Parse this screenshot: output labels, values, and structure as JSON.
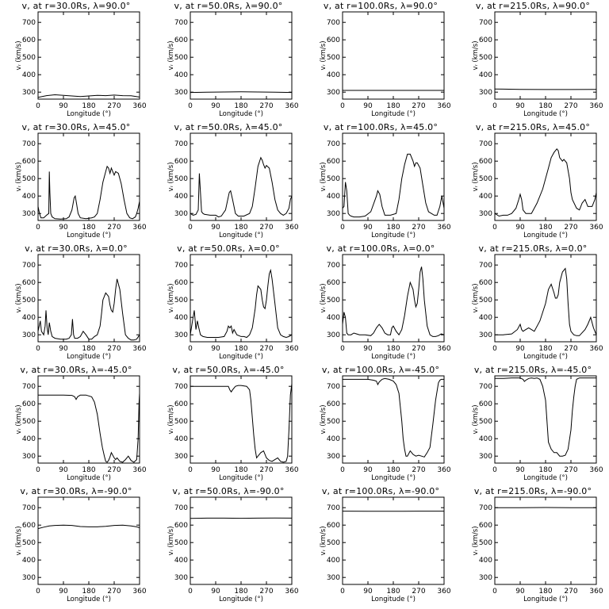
{
  "chart_data": {
    "type": "line",
    "title_template": "v{r} at r={radius}Rs, λ={lat}°",
    "xlabel": "Longitude (°)",
    "ylabel": "v{r} (km/s)",
    "xlim": [
      0,
      360
    ],
    "ylim": [
      260,
      760
    ],
    "xticks": [
      0,
      90,
      180,
      270,
      360
    ],
    "yticks": [
      300,
      400,
      500,
      600,
      700
    ],
    "radii": [
      "30.0",
      "50.0",
      "100.0",
      "215.0"
    ],
    "latitudes": [
      "90.0",
      "45.0",
      "0.0",
      "-45.0",
      "-90.0"
    ],
    "panels": [
      {
        "title": "v, at r=30.0Rs, λ=90.0°",
        "x": [
          0,
          30,
          60,
          90,
          120,
          150,
          180,
          210,
          240,
          270,
          300,
          330,
          360
        ],
        "y": [
          270,
          280,
          285,
          282,
          278,
          275,
          278,
          282,
          280,
          283,
          280,
          279,
          272
        ]
      },
      {
        "title": "v, at r=50.0Rs, λ=90.0°",
        "x": [
          0,
          60,
          120,
          180,
          240,
          300,
          360
        ],
        "y": [
          298,
          300,
          301,
          302,
          301,
          300,
          298
        ]
      },
      {
        "title": "v, at r=100.0Rs, λ=90.0°",
        "x": [
          0,
          360
        ],
        "y": [
          310,
          310
        ]
      },
      {
        "title": "v, at r=215.0Rs, λ=90.0°",
        "x": [
          0,
          90,
          180,
          270,
          360
        ],
        "y": [
          318,
          316,
          315,
          315,
          316
        ]
      },
      {
        "title": "v, at r=30.0Rs, λ=45.0°",
        "x": [
          0,
          5,
          10,
          20,
          30,
          38,
          40,
          42,
          45,
          50,
          60,
          80,
          100,
          110,
          120,
          128,
          132,
          136,
          142,
          150,
          170,
          190,
          200,
          210,
          220,
          230,
          240,
          245,
          250,
          255,
          260,
          265,
          270,
          275,
          285,
          295,
          305,
          315,
          325,
          335,
          345,
          350,
          355,
          360
        ],
        "y": [
          340,
          300,
          275,
          275,
          290,
          300,
          540,
          420,
          300,
          280,
          270,
          268,
          270,
          280,
          320,
          390,
          400,
          360,
          300,
          275,
          270,
          275,
          280,
          300,
          380,
          480,
          540,
          570,
          560,
          530,
          560,
          540,
          520,
          540,
          530,
          470,
          380,
          300,
          275,
          270,
          280,
          300,
          330,
          370
        ]
      },
      {
        "title": "v, at r=50.0Rs, λ=45.0°",
        "x": [
          0,
          10,
          20,
          28,
          32,
          36,
          40,
          45,
          50,
          70,
          90,
          100,
          110,
          125,
          138,
          143,
          150,
          160,
          170,
          190,
          210,
          220,
          230,
          240,
          250,
          255,
          260,
          265,
          270,
          280,
          290,
          300,
          310,
          320,
          330,
          340,
          350,
          355,
          360
        ],
        "y": [
          300,
          290,
          295,
          320,
          530,
          420,
          310,
          300,
          295,
          290,
          290,
          280,
          285,
          320,
          420,
          430,
          380,
          300,
          285,
          285,
          300,
          340,
          450,
          570,
          620,
          605,
          580,
          560,
          575,
          560,
          480,
          380,
          320,
          300,
          290,
          300,
          330,
          380,
          400
        ]
      },
      {
        "title": "v, at r=100.0Rs, λ=45.0°",
        "x": [
          0,
          5,
          10,
          15,
          20,
          25,
          30,
          40,
          60,
          80,
          100,
          120,
          125,
          132,
          140,
          150,
          170,
          190,
          200,
          210,
          220,
          230,
          240,
          250,
          255,
          260,
          265,
          275,
          285,
          295,
          305,
          315,
          325,
          335,
          345,
          352,
          360
        ],
        "y": [
          330,
          340,
          480,
          430,
          300,
          290,
          285,
          280,
          280,
          285,
          310,
          400,
          430,
          410,
          340,
          290,
          290,
          300,
          380,
          500,
          580,
          640,
          640,
          600,
          570,
          590,
          590,
          560,
          460,
          360,
          310,
          300,
          290,
          290,
          340,
          400,
          330
        ]
      },
      {
        "title": "v, at r=215.0Rs, λ=45.0°",
        "x": [
          0,
          15,
          30,
          45,
          60,
          75,
          85,
          90,
          95,
          100,
          110,
          130,
          150,
          170,
          190,
          200,
          210,
          220,
          225,
          230,
          240,
          245,
          255,
          265,
          270,
          275,
          290,
          300,
          310,
          320,
          330,
          345,
          355,
          360
        ],
        "y": [
          300,
          285,
          290,
          290,
          300,
          330,
          380,
          410,
          380,
          320,
          300,
          300,
          360,
          440,
          560,
          620,
          650,
          670,
          660,
          620,
          600,
          610,
          590,
          500,
          420,
          380,
          330,
          320,
          360,
          380,
          340,
          340,
          380,
          420
        ]
      },
      {
        "title": "v, at r=30.0Rs, λ=0.0°",
        "x": [
          0,
          8,
          12,
          20,
          25,
          28,
          32,
          36,
          40,
          45,
          50,
          60,
          80,
          100,
          110,
          118,
          122,
          126,
          130,
          140,
          150,
          160,
          170,
          180,
          190,
          200,
          210,
          220,
          225,
          230,
          240,
          250,
          255,
          260,
          265,
          270,
          275,
          280,
          290,
          300,
          310,
          320,
          330,
          340,
          350,
          360
        ],
        "y": [
          320,
          380,
          320,
          300,
          350,
          440,
          340,
          300,
          370,
          320,
          290,
          280,
          275,
          275,
          280,
          300,
          390,
          300,
          280,
          280,
          290,
          320,
          300,
          275,
          275,
          290,
          300,
          350,
          420,
          500,
          540,
          520,
          470,
          440,
          430,
          480,
          560,
          620,
          560,
          420,
          300,
          280,
          270,
          270,
          275,
          300
        ]
      },
      {
        "title": "v, at r=50.0Rs, λ=0.0°",
        "x": [
          0,
          8,
          14,
          20,
          25,
          30,
          36,
          45,
          60,
          80,
          100,
          120,
          130,
          135,
          140,
          145,
          150,
          155,
          165,
          180,
          190,
          200,
          210,
          220,
          230,
          235,
          240,
          250,
          255,
          260,
          265,
          270,
          275,
          280,
          285,
          290,
          300,
          310,
          320,
          330,
          340,
          350,
          360
        ],
        "y": [
          300,
          380,
          440,
          330,
          380,
          340,
          300,
          290,
          285,
          285,
          285,
          290,
          320,
          350,
          340,
          350,
          310,
          330,
          300,
          290,
          290,
          285,
          300,
          340,
          450,
          530,
          580,
          560,
          500,
          460,
          450,
          500,
          580,
          650,
          670,
          620,
          480,
          340,
          300,
          290,
          285,
          290,
          300
        ]
      },
      {
        "title": "v, at r=100.0Rs, λ=0.0°",
        "x": [
          0,
          5,
          10,
          15,
          20,
          30,
          40,
          50,
          60,
          80,
          100,
          110,
          120,
          130,
          140,
          150,
          160,
          170,
          175,
          180,
          190,
          200,
          210,
          220,
          230,
          240,
          250,
          255,
          260,
          265,
          270,
          275,
          280,
          285,
          290,
          300,
          310,
          320,
          330,
          340,
          350,
          360
        ],
        "y": [
          360,
          430,
          400,
          310,
          300,
          300,
          310,
          305,
          300,
          300,
          295,
          310,
          340,
          360,
          340,
          310,
          300,
          300,
          340,
          350,
          320,
          300,
          330,
          410,
          520,
          600,
          560,
          500,
          460,
          480,
          560,
          660,
          690,
          620,
          500,
          350,
          300,
          290,
          290,
          295,
          305,
          300
        ]
      },
      {
        "title": "v, at r=215.0Rs, λ=0.0°",
        "x": [
          0,
          30,
          60,
          80,
          90,
          95,
          100,
          110,
          120,
          140,
          160,
          180,
          190,
          200,
          210,
          215,
          220,
          225,
          230,
          240,
          250,
          255,
          260,
          265,
          270,
          280,
          290,
          300,
          320,
          330,
          340,
          350,
          360
        ],
        "y": [
          300,
          300,
          305,
          330,
          360,
          330,
          320,
          330,
          340,
          320,
          380,
          480,
          560,
          590,
          540,
          510,
          510,
          530,
          600,
          660,
          680,
          620,
          480,
          360,
          320,
          300,
          295,
          295,
          330,
          360,
          400,
          340,
          300
        ]
      },
      {
        "title": "v, at r=30.0Rs, λ=-45.0°",
        "x": [
          0,
          30,
          60,
          90,
          120,
          130,
          135,
          140,
          150,
          170,
          190,
          200,
          210,
          220,
          228,
          235,
          240,
          245,
          250,
          255,
          260,
          270,
          275,
          280,
          290,
          300,
          310,
          320,
          330,
          340,
          350,
          355,
          358,
          360
        ],
        "y": [
          650,
          650,
          650,
          650,
          648,
          640,
          625,
          640,
          650,
          650,
          640,
          610,
          540,
          430,
          350,
          300,
          270,
          265,
          275,
          295,
          320,
          290,
          280,
          290,
          270,
          265,
          280,
          300,
          275,
          265,
          280,
          400,
          600,
          660
        ]
      },
      {
        "title": "v, at r=50.0Rs, λ=-45.0°",
        "x": [
          0,
          30,
          60,
          90,
          120,
          135,
          140,
          145,
          150,
          160,
          170,
          180,
          200,
          210,
          215,
          220,
          225,
          230,
          235,
          240,
          250,
          260,
          270,
          280,
          290,
          300,
          310,
          320,
          330,
          340,
          345,
          350,
          355,
          360
        ],
        "y": [
          700,
          700,
          700,
          700,
          700,
          700,
          680,
          668,
          680,
          700,
          705,
          705,
          700,
          680,
          620,
          520,
          420,
          340,
          290,
          300,
          320,
          330,
          290,
          275,
          270,
          280,
          290,
          270,
          265,
          270,
          300,
          450,
          650,
          715
        ]
      },
      {
        "title": "v, at r=100.0Rs, λ=-45.0°",
        "x": [
          0,
          30,
          60,
          90,
          110,
          120,
          125,
          130,
          140,
          150,
          165,
          180,
          190,
          200,
          205,
          210,
          215,
          220,
          225,
          230,
          240,
          250,
          260,
          270,
          280,
          290,
          300,
          310,
          320,
          330,
          340,
          345,
          350,
          355,
          360
        ],
        "y": [
          740,
          740,
          740,
          740,
          735,
          730,
          710,
          725,
          740,
          745,
          740,
          730,
          710,
          660,
          580,
          500,
          400,
          340,
          300,
          300,
          330,
          310,
          300,
          305,
          300,
          295,
          320,
          350,
          480,
          620,
          720,
          735,
          740,
          740,
          740
        ]
      },
      {
        "title": "v, at r=215.0Rs, λ=-45.0°",
        "x": [
          0,
          30,
          60,
          90,
          100,
          105,
          110,
          120,
          130,
          140,
          150,
          160,
          170,
          180,
          185,
          190,
          200,
          210,
          220,
          230,
          240,
          250,
          260,
          270,
          275,
          280,
          285,
          290,
          300,
          320,
          340,
          360
        ],
        "y": [
          745,
          745,
          748,
          748,
          740,
          728,
          735,
          745,
          748,
          745,
          748,
          740,
          700,
          620,
          500,
          380,
          340,
          320,
          320,
          300,
          300,
          305,
          340,
          450,
          560,
          640,
          700,
          740,
          748,
          748,
          748,
          748
        ]
      },
      {
        "title": "v, at r=30.0Rs, λ=-90.0°",
        "x": [
          0,
          20,
          40,
          60,
          90,
          120,
          150,
          180,
          210,
          240,
          270,
          300,
          330,
          350,
          360
        ],
        "y": [
          580,
          588,
          595,
          598,
          600,
          598,
          592,
          590,
          590,
          593,
          598,
          600,
          595,
          590,
          585
        ]
      },
      {
        "title": "v, at r=50.0Rs, λ=-90.0°",
        "x": [
          0,
          60,
          120,
          180,
          240,
          300,
          360
        ],
        "y": [
          638,
          640,
          640,
          639,
          640,
          641,
          640
        ]
      },
      {
        "title": "v, at r=100.0Rs, λ=-90.0°",
        "x": [
          0,
          90,
          180,
          270,
          360
        ],
        "y": [
          680,
          679,
          679,
          680,
          680
        ]
      },
      {
        "title": "v, at r=215.0Rs, λ=-90.0°",
        "x": [
          0,
          90,
          180,
          270,
          360
        ],
        "y": [
          700,
          700,
          701,
          700,
          700
        ]
      }
    ]
  }
}
